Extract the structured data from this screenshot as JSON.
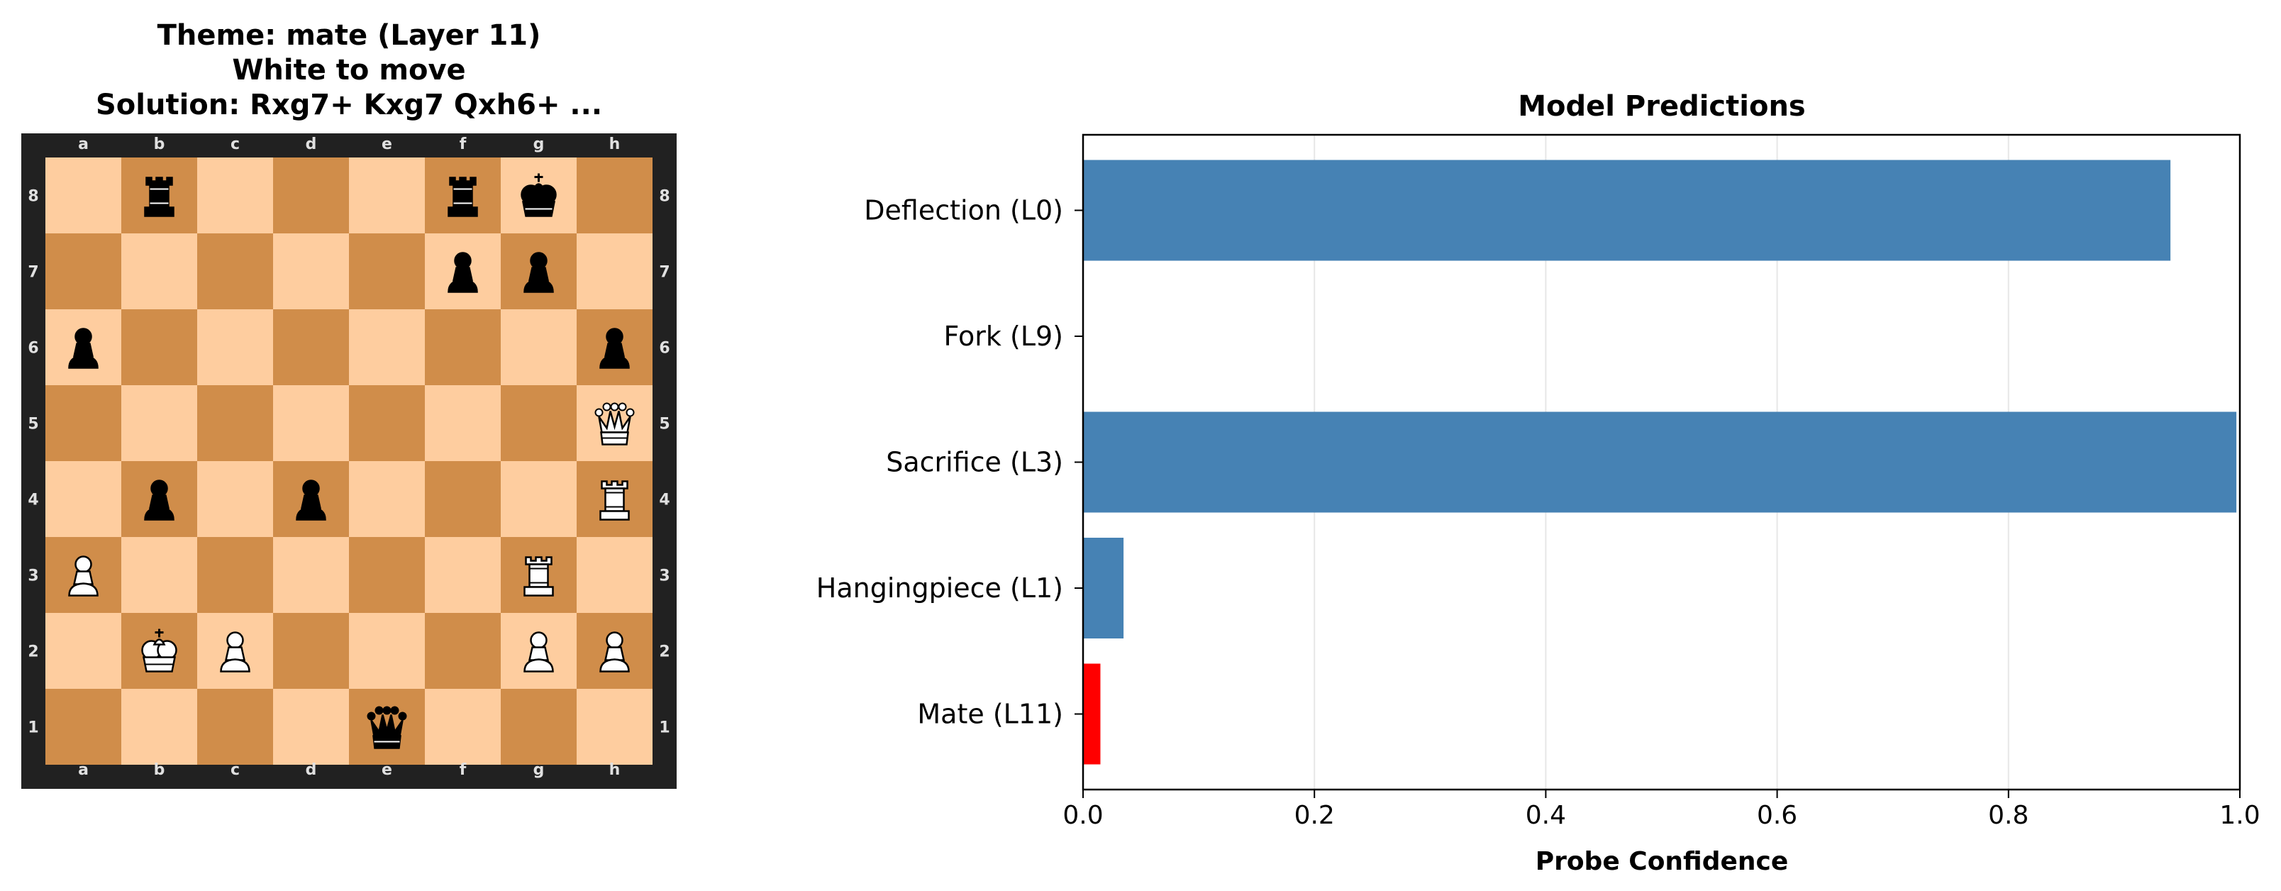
{
  "board_panel": {
    "title_lines": [
      "Theme: mate (Layer 11)",
      "White to move",
      "Solution: Rxg7+ Kxg7 Qxh6+ ..."
    ],
    "files": [
      "a",
      "b",
      "c",
      "d",
      "e",
      "f",
      "g",
      "h"
    ],
    "ranks": [
      "8",
      "7",
      "6",
      "5",
      "4",
      "3",
      "2",
      "1"
    ],
    "colors": {
      "light": "#fecd9f",
      "dark": "#d08d4a",
      "border": "#212121",
      "coord": "#e0e0e0"
    },
    "pieces": [
      {
        "square": "b8",
        "piece": "black-rook"
      },
      {
        "square": "f8",
        "piece": "black-rook"
      },
      {
        "square": "g8",
        "piece": "black-king"
      },
      {
        "square": "f7",
        "piece": "black-pawn"
      },
      {
        "square": "g7",
        "piece": "black-pawn"
      },
      {
        "square": "a6",
        "piece": "black-pawn"
      },
      {
        "square": "h6",
        "piece": "black-pawn"
      },
      {
        "square": "h5",
        "piece": "white-queen"
      },
      {
        "square": "b4",
        "piece": "black-pawn"
      },
      {
        "square": "d4",
        "piece": "black-pawn"
      },
      {
        "square": "h4",
        "piece": "white-rook"
      },
      {
        "square": "a3",
        "piece": "white-pawn"
      },
      {
        "square": "g3",
        "piece": "white-rook"
      },
      {
        "square": "b2",
        "piece": "white-king"
      },
      {
        "square": "c2",
        "piece": "white-pawn"
      },
      {
        "square": "g2",
        "piece": "white-pawn"
      },
      {
        "square": "h2",
        "piece": "white-pawn"
      },
      {
        "square": "e1",
        "piece": "black-queen"
      }
    ]
  },
  "chart_data": {
    "type": "bar",
    "orientation": "horizontal",
    "title": "Model Predictions",
    "xlabel": "Probe Confidence",
    "ylabel": "",
    "xlim": [
      0,
      1
    ],
    "xticks": [
      0.0,
      0.2,
      0.4,
      0.6,
      0.8,
      1.0
    ],
    "xtick_labels": [
      "0.0",
      "0.2",
      "0.4",
      "0.6",
      "0.8",
      "1.0"
    ],
    "grid": "x",
    "categories": [
      "Deflection (L0)",
      "Fork (L9)",
      "Sacrifice (L3)",
      "Hangingpiece (L1)",
      "Mate (L11)"
    ],
    "values": [
      0.94,
      0.0,
      0.997,
      0.035,
      0.015
    ],
    "bar_colors": [
      "#4682b4",
      "#4682b4",
      "#4682b4",
      "#4682b4",
      "#ff0000"
    ]
  }
}
